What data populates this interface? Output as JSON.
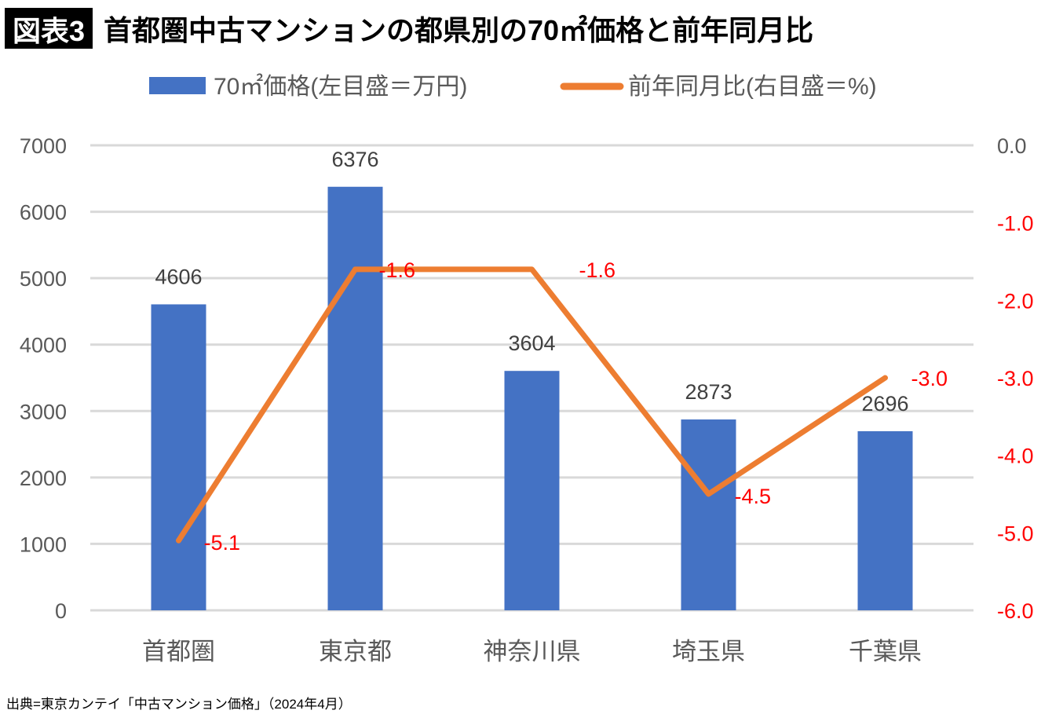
{
  "badge": "図表3",
  "title": "首都圏中古マンションの都県別の70㎡価格と前年同月比",
  "source": "出典=東京カンテイ「中古マンション価格」（2024年4月）",
  "chart_data": {
    "type": "bar+line",
    "categories": [
      "首都圏",
      "東京都",
      "神奈川県",
      "埼玉県",
      "千葉県"
    ],
    "series": [
      {
        "name": "70㎡価格(左目盛＝万円)",
        "type": "bar",
        "axis": "left",
        "color": "#4472C4",
        "values": [
          4606,
          6376,
          3604,
          2873,
          2696
        ]
      },
      {
        "name": "前年同月比(右目盛＝%)",
        "type": "line",
        "axis": "right",
        "color": "#ED7D31",
        "values": [
          -5.1,
          -1.6,
          -1.6,
          -4.5,
          -3.0
        ],
        "labels": [
          "-5.1",
          "-1.6",
          "-1.6",
          "-4.5",
          "-3.0"
        ]
      }
    ],
    "left_axis": {
      "range": [
        0,
        7000
      ],
      "ticks": [
        "0",
        "1000",
        "2000",
        "3000",
        "4000",
        "5000",
        "6000",
        "7000"
      ]
    },
    "right_axis": {
      "range": [
        -6.0,
        0.0
      ],
      "ticks": [
        "-6.0",
        "-5.0",
        "-4.0",
        "-3.0",
        "-2.0",
        "-1.0",
        "0.0"
      ],
      "tick_color_negative": "#FF0000"
    },
    "data_label_color_line": "#FF0000",
    "grid": true,
    "legend": "top"
  }
}
